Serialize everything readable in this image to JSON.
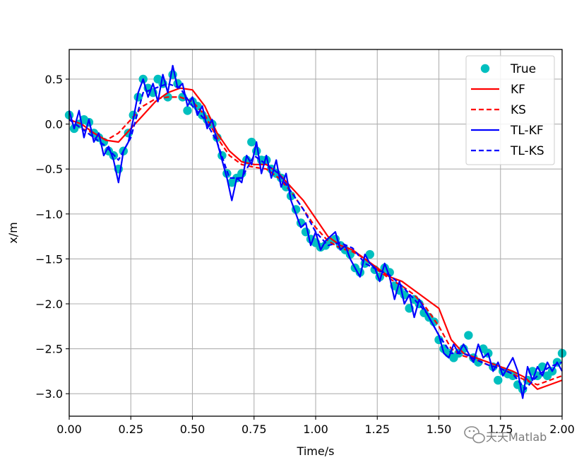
{
  "chart_data": {
    "type": "line",
    "title": "",
    "xlabel": "Time/s",
    "ylabel": "x/m",
    "xlim": [
      0,
      2
    ],
    "ylim": [
      -3.25,
      0.83
    ],
    "xticks": [
      0,
      0.25,
      0.5,
      0.75,
      1.0,
      1.25,
      1.5,
      1.75,
      2.0
    ],
    "xtick_labels": [
      "0.00",
      "0.25",
      "0.50",
      "0.75",
      "1.00",
      "1.25",
      "1.50",
      "1.75",
      "2.00"
    ],
    "yticks": [
      0.5,
      0.0,
      -0.5,
      -1.0,
      -1.5,
      -2.0,
      -2.5,
      -3.0
    ],
    "ytick_labels": [
      "0.5",
      "0.0",
      "−0.5",
      "−1.0",
      "−1.5",
      "−2.0",
      "−2.5",
      "−3.0"
    ],
    "grid": true,
    "legend_position": "top-right",
    "colors": {
      "true": "#00bfbf",
      "kf": "#ff0000",
      "ks": "#ff0000",
      "tlkf": "#0000ff",
      "tlks": "#0000ff"
    },
    "series": [
      {
        "name": "True",
        "style": "scatter",
        "x": [
          0.0,
          0.02,
          0.04,
          0.06,
          0.08,
          0.1,
          0.12,
          0.14,
          0.16,
          0.18,
          0.2,
          0.22,
          0.24,
          0.26,
          0.28,
          0.3,
          0.32,
          0.34,
          0.36,
          0.38,
          0.4,
          0.42,
          0.44,
          0.46,
          0.48,
          0.5,
          0.52,
          0.54,
          0.56,
          0.58,
          0.6,
          0.62,
          0.64,
          0.66,
          0.68,
          0.7,
          0.72,
          0.74,
          0.76,
          0.78,
          0.8,
          0.82,
          0.84,
          0.86,
          0.88,
          0.9,
          0.92,
          0.94,
          0.96,
          0.98,
          1.0,
          1.02,
          1.04,
          1.06,
          1.08,
          1.1,
          1.12,
          1.14,
          1.16,
          1.18,
          1.2,
          1.22,
          1.24,
          1.26,
          1.28,
          1.3,
          1.32,
          1.34,
          1.36,
          1.38,
          1.4,
          1.42,
          1.44,
          1.46,
          1.48,
          1.5,
          1.52,
          1.54,
          1.56,
          1.58,
          1.6,
          1.62,
          1.64,
          1.66,
          1.68,
          1.7,
          1.72,
          1.74,
          1.76,
          1.78,
          1.8,
          1.82,
          1.84,
          1.86,
          1.88,
          1.9,
          1.92,
          1.94,
          1.96,
          1.98,
          2.0
        ],
        "y": [
          0.1,
          -0.05,
          0.0,
          0.05,
          0.02,
          -0.1,
          -0.15,
          -0.2,
          -0.3,
          -0.35,
          -0.5,
          -0.3,
          -0.1,
          0.1,
          0.3,
          0.5,
          0.4,
          0.35,
          0.5,
          0.45,
          0.3,
          0.55,
          0.45,
          0.3,
          0.15,
          0.25,
          0.2,
          0.1,
          0.05,
          0.0,
          -0.15,
          -0.35,
          -0.55,
          -0.65,
          -0.6,
          -0.55,
          -0.4,
          -0.2,
          -0.3,
          -0.4,
          -0.4,
          -0.5,
          -0.55,
          -0.6,
          -0.7,
          -0.8,
          -0.95,
          -1.1,
          -1.2,
          -1.28,
          -1.32,
          -1.37,
          -1.35,
          -1.3,
          -1.28,
          -1.35,
          -1.4,
          -1.45,
          -1.6,
          -1.65,
          -1.55,
          -1.45,
          -1.62,
          -1.7,
          -1.6,
          -1.65,
          -1.8,
          -1.85,
          -1.9,
          -2.05,
          -1.95,
          -2.0,
          -2.1,
          -2.15,
          -2.2,
          -2.4,
          -2.5,
          -2.55,
          -2.6,
          -2.55,
          -2.5,
          -2.35,
          -2.6,
          -2.65,
          -2.5,
          -2.55,
          -2.7,
          -2.85,
          -2.75,
          -2.78,
          -2.8,
          -2.9,
          -2.95,
          -2.85,
          -2.75,
          -2.8,
          -2.7,
          -2.8,
          -2.75,
          -2.65,
          -2.55
        ]
      },
      {
        "name": "KF",
        "style": "solid",
        "x": [
          0.0,
          0.05,
          0.1,
          0.15,
          0.2,
          0.25,
          0.3,
          0.35,
          0.4,
          0.45,
          0.5,
          0.55,
          0.6,
          0.65,
          0.7,
          0.75,
          0.8,
          0.85,
          0.9,
          0.95,
          1.0,
          1.05,
          1.1,
          1.15,
          1.2,
          1.25,
          1.3,
          1.35,
          1.4,
          1.45,
          1.5,
          1.55,
          1.6,
          1.65,
          1.7,
          1.75,
          1.8,
          1.85,
          1.9,
          1.95,
          2.0
        ],
        "y": [
          0.05,
          0.0,
          -0.1,
          -0.18,
          -0.2,
          -0.05,
          0.1,
          0.25,
          0.35,
          0.4,
          0.38,
          0.2,
          -0.1,
          -0.3,
          -0.42,
          -0.45,
          -0.45,
          -0.55,
          -0.7,
          -0.85,
          -1.05,
          -1.25,
          -1.35,
          -1.4,
          -1.5,
          -1.6,
          -1.7,
          -1.75,
          -1.85,
          -1.95,
          -2.05,
          -2.4,
          -2.55,
          -2.6,
          -2.65,
          -2.7,
          -2.75,
          -2.82,
          -2.95,
          -2.9,
          -2.85
        ]
      },
      {
        "name": "KS",
        "style": "dashed",
        "x": [
          0.0,
          0.05,
          0.1,
          0.15,
          0.2,
          0.25,
          0.3,
          0.35,
          0.4,
          0.45,
          0.5,
          0.55,
          0.6,
          0.65,
          0.7,
          0.75,
          0.8,
          0.85,
          0.9,
          0.95,
          1.0,
          1.05,
          1.1,
          1.15,
          1.2,
          1.25,
          1.3,
          1.35,
          1.4,
          1.45,
          1.5,
          1.55,
          1.6,
          1.65,
          1.7,
          1.75,
          1.8,
          1.85,
          1.9,
          1.95,
          2.0
        ],
        "y": [
          0.05,
          -0.05,
          -0.1,
          -0.18,
          -0.1,
          0.05,
          0.2,
          0.28,
          0.3,
          0.3,
          0.25,
          0.1,
          -0.15,
          -0.35,
          -0.45,
          -0.48,
          -0.5,
          -0.6,
          -0.75,
          -0.95,
          -1.15,
          -1.3,
          -1.38,
          -1.42,
          -1.5,
          -1.62,
          -1.72,
          -1.8,
          -1.9,
          -2.05,
          -2.25,
          -2.5,
          -2.58,
          -2.62,
          -2.68,
          -2.72,
          -2.78,
          -2.85,
          -2.9,
          -2.85,
          -2.8
        ]
      },
      {
        "name": "TL-KF",
        "style": "solid",
        "x": [
          0.0,
          0.02,
          0.04,
          0.06,
          0.08,
          0.1,
          0.12,
          0.14,
          0.16,
          0.18,
          0.2,
          0.22,
          0.24,
          0.26,
          0.28,
          0.3,
          0.32,
          0.34,
          0.36,
          0.38,
          0.4,
          0.42,
          0.44,
          0.46,
          0.48,
          0.5,
          0.52,
          0.54,
          0.56,
          0.58,
          0.6,
          0.62,
          0.64,
          0.66,
          0.68,
          0.7,
          0.72,
          0.74,
          0.76,
          0.78,
          0.8,
          0.82,
          0.84,
          0.86,
          0.88,
          0.9,
          0.92,
          0.94,
          0.96,
          0.98,
          1.0,
          1.02,
          1.04,
          1.06,
          1.08,
          1.1,
          1.12,
          1.14,
          1.16,
          1.18,
          1.2,
          1.22,
          1.24,
          1.26,
          1.28,
          1.3,
          1.32,
          1.34,
          1.36,
          1.38,
          1.4,
          1.42,
          1.44,
          1.46,
          1.48,
          1.5,
          1.52,
          1.54,
          1.56,
          1.58,
          1.6,
          1.62,
          1.64,
          1.66,
          1.68,
          1.7,
          1.72,
          1.74,
          1.76,
          1.78,
          1.8,
          1.82,
          1.84,
          1.86,
          1.88,
          1.9,
          1.92,
          1.94,
          1.96,
          1.98,
          2.0
        ],
        "y": [
          0.15,
          -0.05,
          0.15,
          -0.15,
          0.05,
          -0.2,
          -0.1,
          -0.35,
          -0.25,
          -0.4,
          -0.65,
          -0.3,
          -0.2,
          0.05,
          0.35,
          0.5,
          0.3,
          0.45,
          0.25,
          0.55,
          0.35,
          0.65,
          0.4,
          0.45,
          0.2,
          0.3,
          0.1,
          0.2,
          -0.05,
          0.05,
          -0.2,
          -0.4,
          -0.6,
          -0.85,
          -0.6,
          -0.65,
          -0.35,
          -0.45,
          -0.2,
          -0.55,
          -0.35,
          -0.6,
          -0.4,
          -0.7,
          -0.55,
          -0.85,
          -1.0,
          -1.15,
          -1.1,
          -1.35,
          -1.2,
          -1.4,
          -1.3,
          -1.25,
          -1.2,
          -1.4,
          -1.35,
          -1.5,
          -1.6,
          -1.7,
          -1.45,
          -1.55,
          -1.6,
          -1.75,
          -1.55,
          -1.7,
          -1.95,
          -1.75,
          -2.0,
          -1.9,
          -2.15,
          -1.95,
          -2.05,
          -2.15,
          -2.25,
          -2.35,
          -2.55,
          -2.6,
          -2.45,
          -2.55,
          -2.45,
          -2.55,
          -2.65,
          -2.45,
          -2.6,
          -2.55,
          -2.75,
          -2.65,
          -2.8,
          -2.7,
          -2.6,
          -2.75,
          -3.05,
          -2.7,
          -2.85,
          -2.7,
          -2.8,
          -2.65,
          -2.75,
          -2.65,
          -2.75
        ]
      },
      {
        "name": "TL-KS",
        "style": "dashed",
        "x": [
          0.0,
          0.05,
          0.1,
          0.15,
          0.2,
          0.25,
          0.3,
          0.35,
          0.4,
          0.45,
          0.5,
          0.55,
          0.6,
          0.65,
          0.7,
          0.75,
          0.8,
          0.85,
          0.9,
          0.95,
          1.0,
          1.05,
          1.1,
          1.15,
          1.2,
          1.25,
          1.3,
          1.35,
          1.4,
          1.45,
          1.5,
          1.55,
          1.6,
          1.65,
          1.7,
          1.75,
          1.8,
          1.85,
          1.9,
          1.95,
          2.0
        ],
        "y": [
          0.05,
          -0.05,
          -0.15,
          -0.25,
          -0.4,
          -0.15,
          0.35,
          0.4,
          0.45,
          0.4,
          0.2,
          0.05,
          -0.2,
          -0.6,
          -0.6,
          -0.35,
          -0.45,
          -0.55,
          -0.75,
          -0.95,
          -1.2,
          -1.35,
          -1.32,
          -1.38,
          -1.55,
          -1.62,
          -1.68,
          -1.8,
          -1.95,
          -2.1,
          -2.35,
          -2.55,
          -2.55,
          -2.62,
          -2.68,
          -2.72,
          -2.78,
          -2.95,
          -2.8,
          -2.7,
          -2.65
        ]
      }
    ]
  },
  "watermark": "天天Matlab",
  "watermark_icon": "wechat-icon"
}
